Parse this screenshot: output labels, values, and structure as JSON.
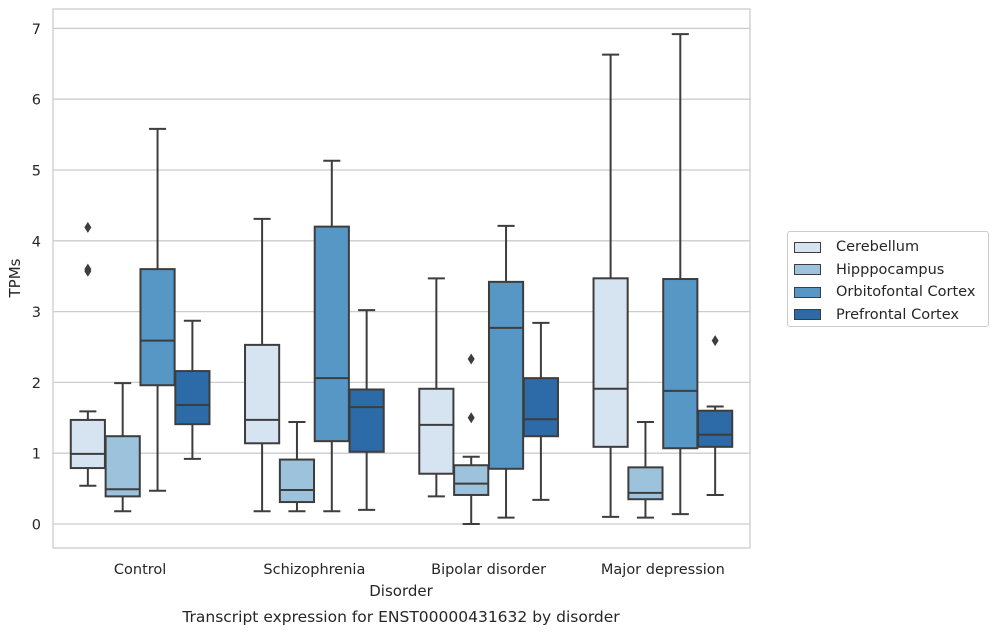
{
  "chart_data": {
    "type": "box",
    "xlabel": "Disorder",
    "ylabel": "TPMs",
    "caption": "Transcript expression for ENST00000431632 by disorder",
    "categories": [
      "Control",
      "Schizophrenia",
      "Bipolar disorder",
      "Major depression"
    ],
    "ylim": [
      -0.33,
      7.3
    ],
    "yticks": [
      0,
      1,
      2,
      3,
      4,
      5,
      6,
      7
    ],
    "grid": "horizontal",
    "legend_position": "right",
    "series": [
      {
        "name": "Cerebellum",
        "color": "#d6e3f1",
        "boxes": [
          {
            "whislo": 0.54,
            "q1": 0.79,
            "med": 0.99,
            "q3": 1.47,
            "whishi": 1.59,
            "fliers": [
              3.57,
              3.6,
              4.19
            ]
          },
          {
            "whislo": 0.18,
            "q1": 1.14,
            "med": 1.47,
            "q3": 2.53,
            "whishi": 4.31,
            "fliers": []
          },
          {
            "whislo": 0.39,
            "q1": 0.71,
            "med": 1.4,
            "q3": 1.91,
            "whishi": 3.47,
            "fliers": []
          },
          {
            "whislo": 0.1,
            "q1": 1.09,
            "med": 1.91,
            "q3": 3.47,
            "whishi": 6.63,
            "fliers": []
          }
        ]
      },
      {
        "name": "Hipppocampus",
        "color": "#9cc2dc",
        "boxes": [
          {
            "whislo": 0.18,
            "q1": 0.39,
            "med": 0.49,
            "q3": 1.24,
            "whishi": 1.99,
            "fliers": []
          },
          {
            "whislo": 0.18,
            "q1": 0.31,
            "med": 0.48,
            "q3": 0.91,
            "whishi": 1.44,
            "fliers": []
          },
          {
            "whislo": 0.0,
            "q1": 0.41,
            "med": 0.57,
            "q3": 0.83,
            "whishi": 0.95,
            "fliers": [
              1.5,
              2.33
            ]
          },
          {
            "whislo": 0.09,
            "q1": 0.35,
            "med": 0.44,
            "q3": 0.8,
            "whishi": 1.44,
            "fliers": []
          }
        ]
      },
      {
        "name": "Orbitofontal Cortex",
        "color": "#5797c6",
        "boxes": [
          {
            "whislo": 0.47,
            "q1": 1.96,
            "med": 2.59,
            "q3": 3.6,
            "whishi": 5.58,
            "fliers": []
          },
          {
            "whislo": 0.18,
            "q1": 1.17,
            "med": 2.06,
            "q3": 4.2,
            "whishi": 5.13,
            "fliers": []
          },
          {
            "whislo": 0.09,
            "q1": 0.78,
            "med": 2.77,
            "q3": 3.42,
            "whishi": 4.21,
            "fliers": []
          },
          {
            "whislo": 0.14,
            "q1": 1.07,
            "med": 1.88,
            "q3": 3.46,
            "whishi": 6.92,
            "fliers": []
          }
        ]
      },
      {
        "name": "Prefrontal Cortex",
        "color": "#2c6ba8",
        "boxes": [
          {
            "whislo": 0.92,
            "q1": 1.41,
            "med": 1.68,
            "q3": 2.16,
            "whishi": 2.87,
            "fliers": []
          },
          {
            "whislo": 0.2,
            "q1": 1.02,
            "med": 1.65,
            "q3": 1.9,
            "whishi": 3.02,
            "fliers": []
          },
          {
            "whislo": 0.34,
            "q1": 1.24,
            "med": 1.48,
            "q3": 2.06,
            "whishi": 2.84,
            "fliers": []
          },
          {
            "whislo": 0.41,
            "q1": 1.09,
            "med": 1.26,
            "q3": 1.6,
            "whishi": 1.66,
            "fliers": [
              2.59
            ]
          }
        ]
      }
    ]
  }
}
